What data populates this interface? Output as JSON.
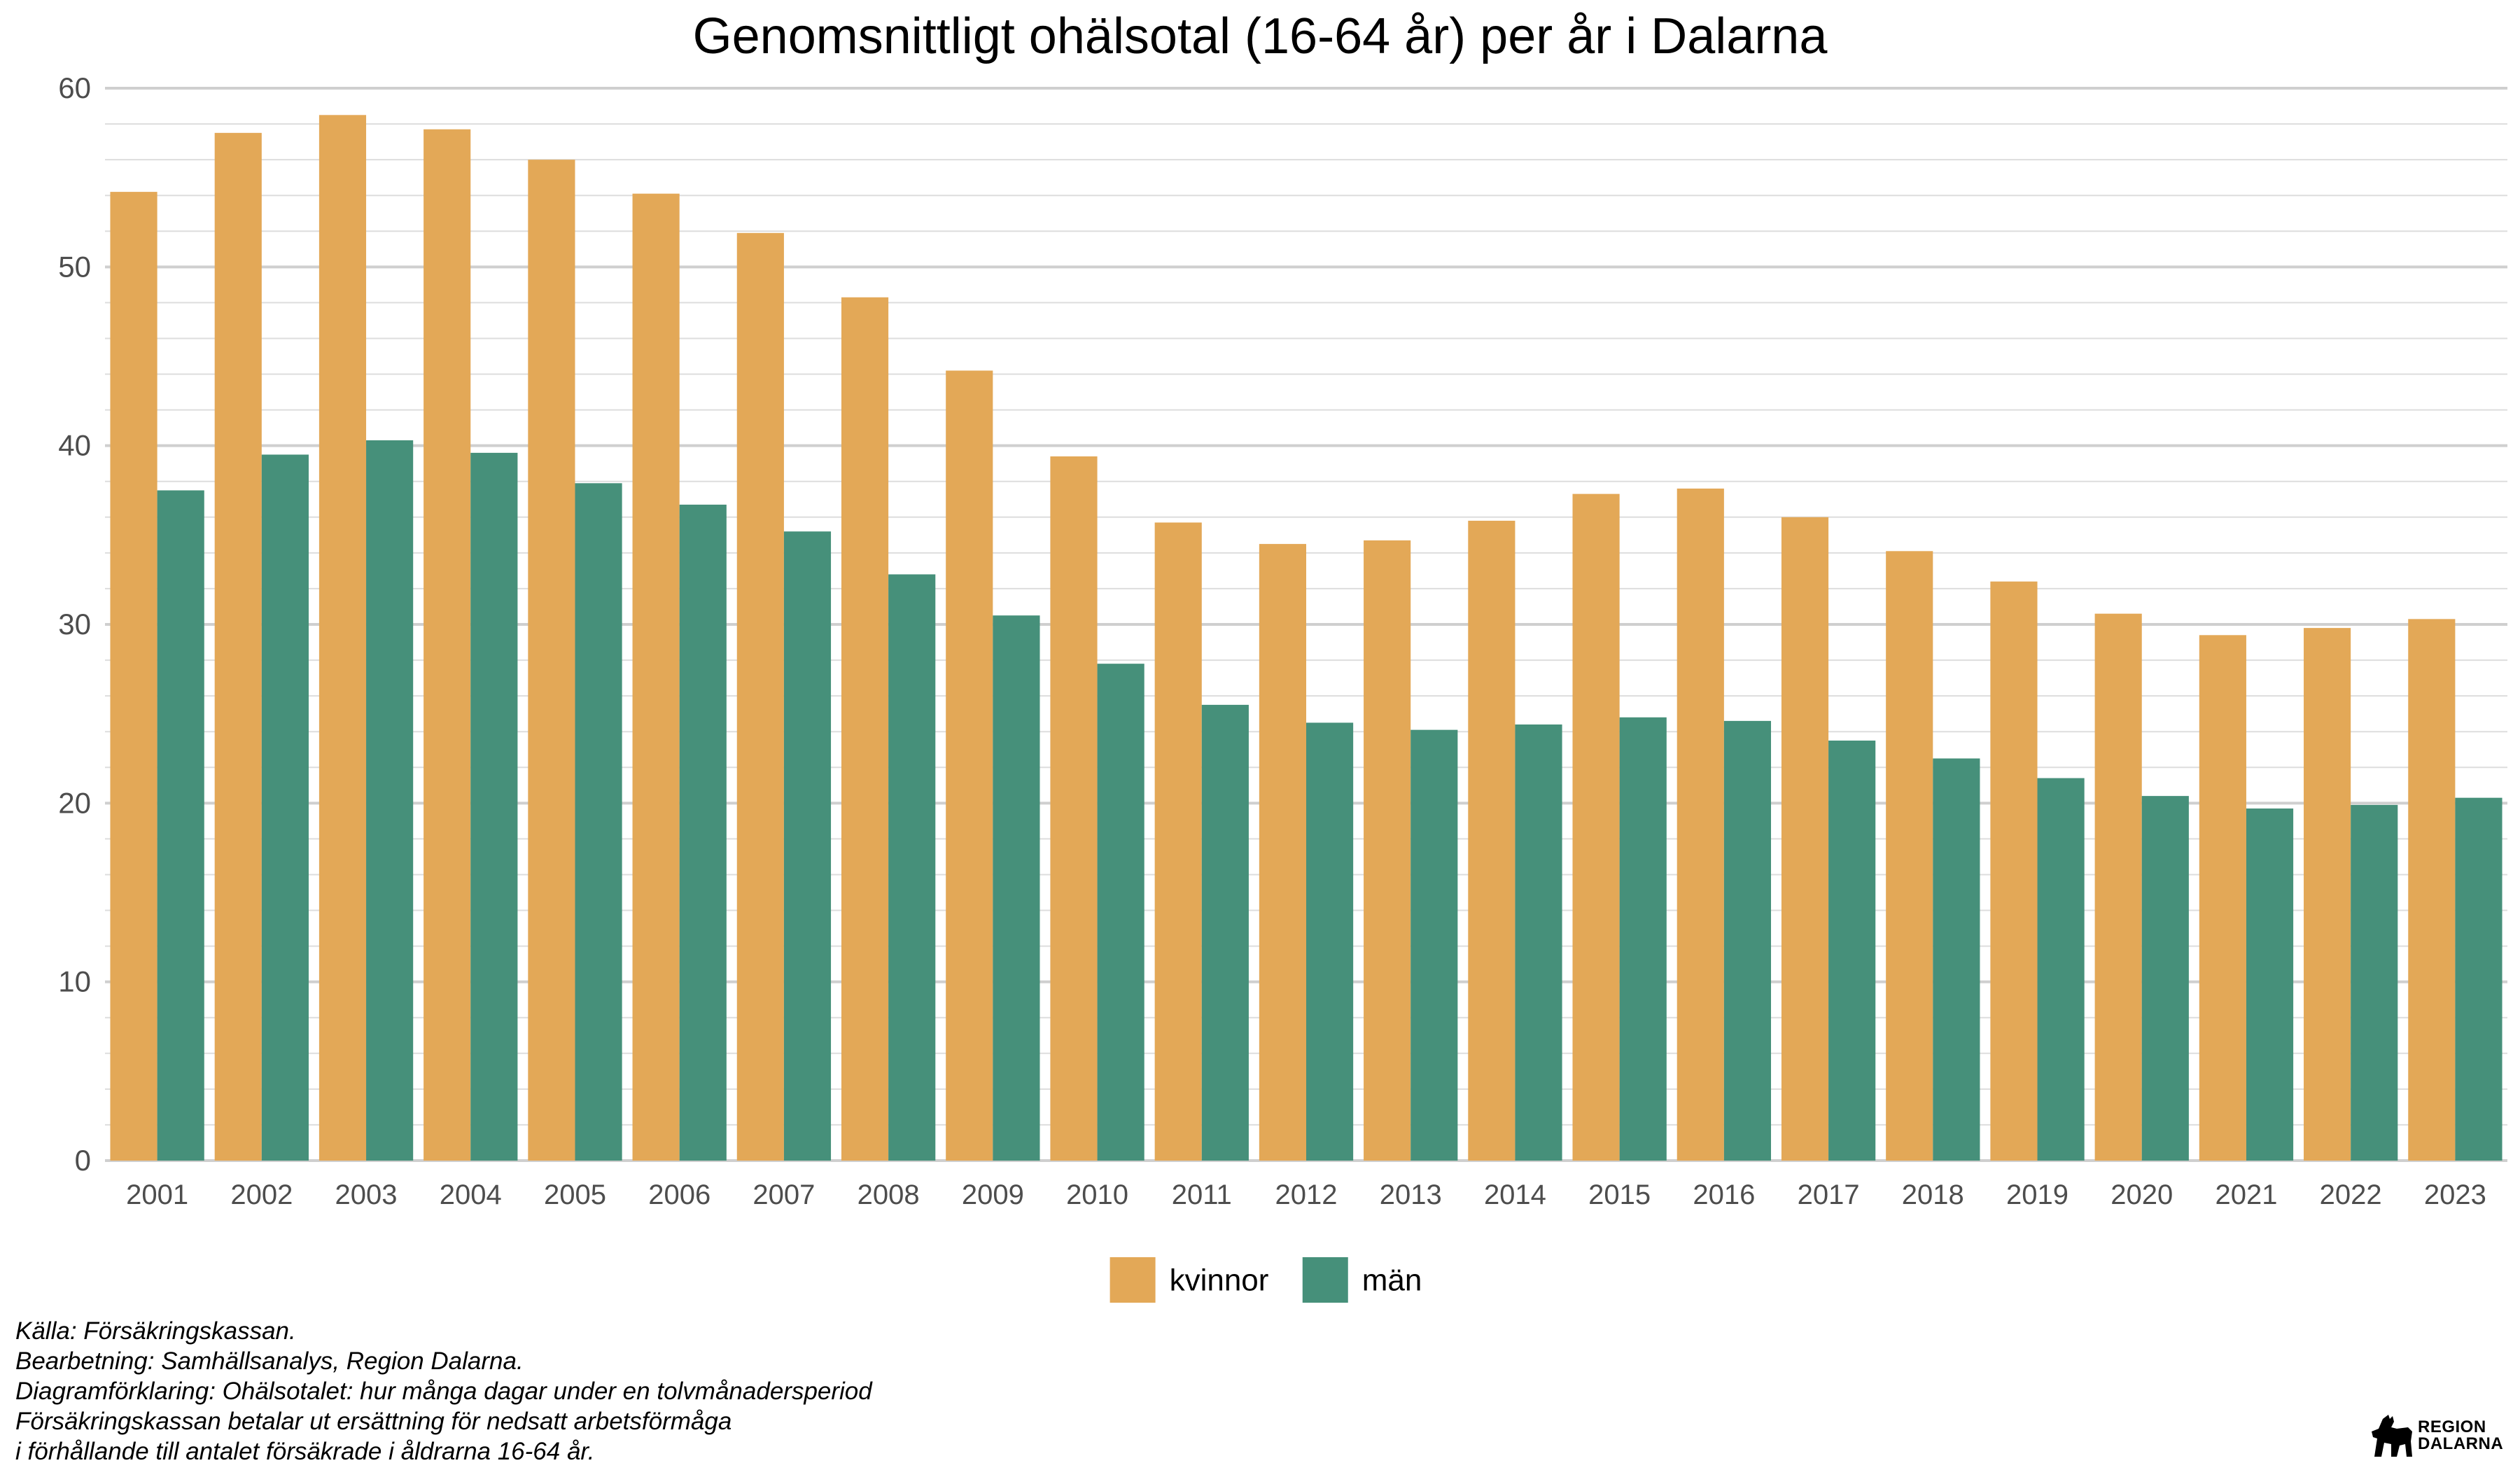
{
  "chart_data": {
    "type": "bar",
    "title": "Genomsnittligt ohälsotal (16-64 år) per år i Dalarna",
    "xlabel": "",
    "ylabel": "",
    "ylim": [
      0,
      60
    ],
    "yticks": [
      0,
      10,
      20,
      30,
      40,
      50,
      60
    ],
    "grid": true,
    "legend_position": "bottom",
    "categories": [
      "2001",
      "2002",
      "2003",
      "2004",
      "2005",
      "2006",
      "2007",
      "2008",
      "2009",
      "2010",
      "2011",
      "2012",
      "2013",
      "2014",
      "2015",
      "2016",
      "2017",
      "2018",
      "2019",
      "2020",
      "2021",
      "2022",
      "2023"
    ],
    "series": [
      {
        "name": "kvinnor",
        "color": "#E3A857",
        "values": [
          54.2,
          57.5,
          58.5,
          57.7,
          56.0,
          54.1,
          51.9,
          48.3,
          44.2,
          39.4,
          35.7,
          34.5,
          34.7,
          35.8,
          37.3,
          37.6,
          36.0,
          34.1,
          32.4,
          30.6,
          29.4,
          29.8,
          30.3
        ]
      },
      {
        "name": "män",
        "color": "#46907A",
        "values": [
          37.5,
          39.5,
          40.3,
          39.6,
          37.9,
          36.7,
          35.2,
          32.8,
          30.5,
          27.8,
          25.5,
          24.5,
          24.1,
          24.4,
          24.8,
          24.6,
          23.5,
          22.5,
          21.4,
          20.4,
          19.7,
          19.9,
          20.3
        ]
      }
    ]
  },
  "caption": {
    "lines": [
      "Källa: Försäkringskassan.",
      "Bearbetning: Samhällsanalys, Region Dalarna.",
      "Diagramförklaring: Ohälsotalet: hur många dagar under en tolvmånadersperiod",
      "Försäkringskassan betalar ut ersättning för nedsatt arbetsförmåga",
      "i förhållande till antalet försäkrade i åldrarna 16-64 år."
    ]
  },
  "logo": {
    "line1": "REGION",
    "line2": "DALARNA",
    "icon": "dala-horse-icon"
  }
}
